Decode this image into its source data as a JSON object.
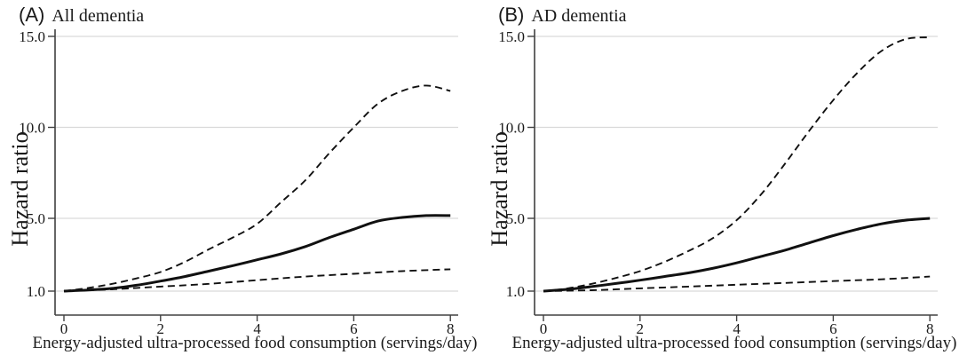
{
  "figure": {
    "colors": {
      "background": "#ffffff",
      "curve": "#111111",
      "grid": "#d9d9d9",
      "axis": "#404040",
      "text": "#1a1a1a"
    }
  },
  "panels": [
    {
      "letter": "(A)",
      "title": "All dementia",
      "ylabel": "Hazard ratio",
      "xlabel": "Energy-adjusted ultra-processed food consumption (servings/day)"
    },
    {
      "letter": "(B)",
      "title": "AD dementia",
      "ylabel": "Hazard ratio",
      "xlabel": "Energy-adjusted ultra-processed food consumption (servings/day)"
    }
  ],
  "chart_data": [
    {
      "type": "line",
      "panel_label": "(A)",
      "title": "All dementia",
      "xlabel": "Energy-adjusted ultra-processed food consumption (servings/day)",
      "ylabel": "Hazard ratio",
      "xlim": [
        0,
        8
      ],
      "ylim": [
        0.7,
        15.5
      ],
      "grid": true,
      "legend": "none",
      "x_ticks": [
        {
          "value": 0,
          "label": "0"
        },
        {
          "value": 2,
          "label": "2"
        },
        {
          "value": 4,
          "label": "4"
        },
        {
          "value": 6,
          "label": "6"
        },
        {
          "value": 8,
          "label": "8"
        }
      ],
      "y_ticks": [
        {
          "value": 1.0,
          "label": "1.0"
        },
        {
          "value": 5.0,
          "label": "5.0"
        },
        {
          "value": 10.0,
          "label": "10.0"
        },
        {
          "value": 15.0,
          "label": "15.0"
        }
      ],
      "series": [
        {
          "name": "hazard-ratio-estimate",
          "style": "solid",
          "points": [
            [
              0,
              1.0
            ],
            [
              0.5,
              1.06
            ],
            [
              1,
              1.15
            ],
            [
              1.5,
              1.32
            ],
            [
              2,
              1.55
            ],
            [
              2.5,
              1.8
            ],
            [
              3,
              2.1
            ],
            [
              3.5,
              2.4
            ],
            [
              4,
              2.72
            ],
            [
              4.5,
              3.05
            ],
            [
              5,
              3.45
            ],
            [
              5.5,
              3.95
            ],
            [
              6,
              4.4
            ],
            [
              6.5,
              4.85
            ],
            [
              7,
              5.05
            ],
            [
              7.5,
              5.15
            ],
            [
              8,
              5.15
            ]
          ]
        },
        {
          "name": "upper-dashed-band",
          "style": "dashed",
          "points": [
            [
              0,
              1.0
            ],
            [
              0.5,
              1.17
            ],
            [
              1,
              1.4
            ],
            [
              1.5,
              1.7
            ],
            [
              2,
              2.05
            ],
            [
              2.5,
              2.6
            ],
            [
              3,
              3.3
            ],
            [
              3.5,
              3.95
            ],
            [
              4,
              4.7
            ],
            [
              4.5,
              5.9
            ],
            [
              5,
              7.1
            ],
            [
              5.5,
              8.6
            ],
            [
              6,
              10.0
            ],
            [
              6.5,
              11.3
            ],
            [
              7,
              12.0
            ],
            [
              7.5,
              12.3
            ],
            [
              8,
              12.0
            ]
          ]
        },
        {
          "name": "lower-dashed-band",
          "style": "dashed",
          "points": [
            [
              0,
              1.0
            ],
            [
              1,
              1.1
            ],
            [
              2,
              1.25
            ],
            [
              3,
              1.4
            ],
            [
              4,
              1.6
            ],
            [
              5,
              1.8
            ],
            [
              6,
              1.95
            ],
            [
              7,
              2.1
            ],
            [
              8,
              2.2
            ]
          ]
        }
      ]
    },
    {
      "type": "line",
      "panel_label": "(B)",
      "title": "AD dementia",
      "xlabel": "Energy-adjusted ultra-processed food consumption (servings/day)",
      "ylabel": "Hazard ratio",
      "xlim": [
        0,
        8
      ],
      "ylim": [
        0.7,
        15.5
      ],
      "grid": true,
      "legend": "none",
      "x_ticks": [
        {
          "value": 0,
          "label": "0"
        },
        {
          "value": 2,
          "label": "2"
        },
        {
          "value": 4,
          "label": "4"
        },
        {
          "value": 6,
          "label": "6"
        },
        {
          "value": 8,
          "label": "8"
        }
      ],
      "y_ticks": [
        {
          "value": 1.0,
          "label": "1.0"
        },
        {
          "value": 5.0,
          "label": "5.0"
        },
        {
          "value": 10.0,
          "label": "10.0"
        },
        {
          "value": 15.0,
          "label": "15.0"
        }
      ],
      "series": [
        {
          "name": "hazard-ratio-estimate",
          "style": "solid",
          "points": [
            [
              0,
              1.0
            ],
            [
              0.5,
              1.1
            ],
            [
              1,
              1.25
            ],
            [
              1.5,
              1.42
            ],
            [
              2,
              1.6
            ],
            [
              2.5,
              1.8
            ],
            [
              3,
              2.0
            ],
            [
              3.5,
              2.25
            ],
            [
              4,
              2.55
            ],
            [
              4.5,
              2.9
            ],
            [
              5,
              3.25
            ],
            [
              5.5,
              3.65
            ],
            [
              6,
              4.05
            ],
            [
              6.5,
              4.4
            ],
            [
              7,
              4.7
            ],
            [
              7.5,
              4.9
            ],
            [
              8,
              5.0
            ]
          ]
        },
        {
          "name": "upper-dashed-band",
          "style": "dashed",
          "points": [
            [
              0,
              1.0
            ],
            [
              0.5,
              1.15
            ],
            [
              1,
              1.4
            ],
            [
              1.5,
              1.72
            ],
            [
              2,
              2.1
            ],
            [
              2.5,
              2.6
            ],
            [
              3,
              3.2
            ],
            [
              3.5,
              3.9
            ],
            [
              4,
              4.9
            ],
            [
              4.5,
              6.3
            ],
            [
              5,
              8.0
            ],
            [
              5.5,
              9.8
            ],
            [
              6,
              11.5
            ],
            [
              6.5,
              13.0
            ],
            [
              7,
              14.2
            ],
            [
              7.5,
              14.85
            ],
            [
              8,
              14.95
            ]
          ]
        },
        {
          "name": "lower-dashed-band",
          "style": "dashed",
          "points": [
            [
              0,
              1.0
            ],
            [
              1,
              1.05
            ],
            [
              2,
              1.15
            ],
            [
              3,
              1.25
            ],
            [
              4,
              1.35
            ],
            [
              5,
              1.45
            ],
            [
              6,
              1.55
            ],
            [
              7,
              1.65
            ],
            [
              8,
              1.8
            ]
          ]
        }
      ]
    }
  ]
}
